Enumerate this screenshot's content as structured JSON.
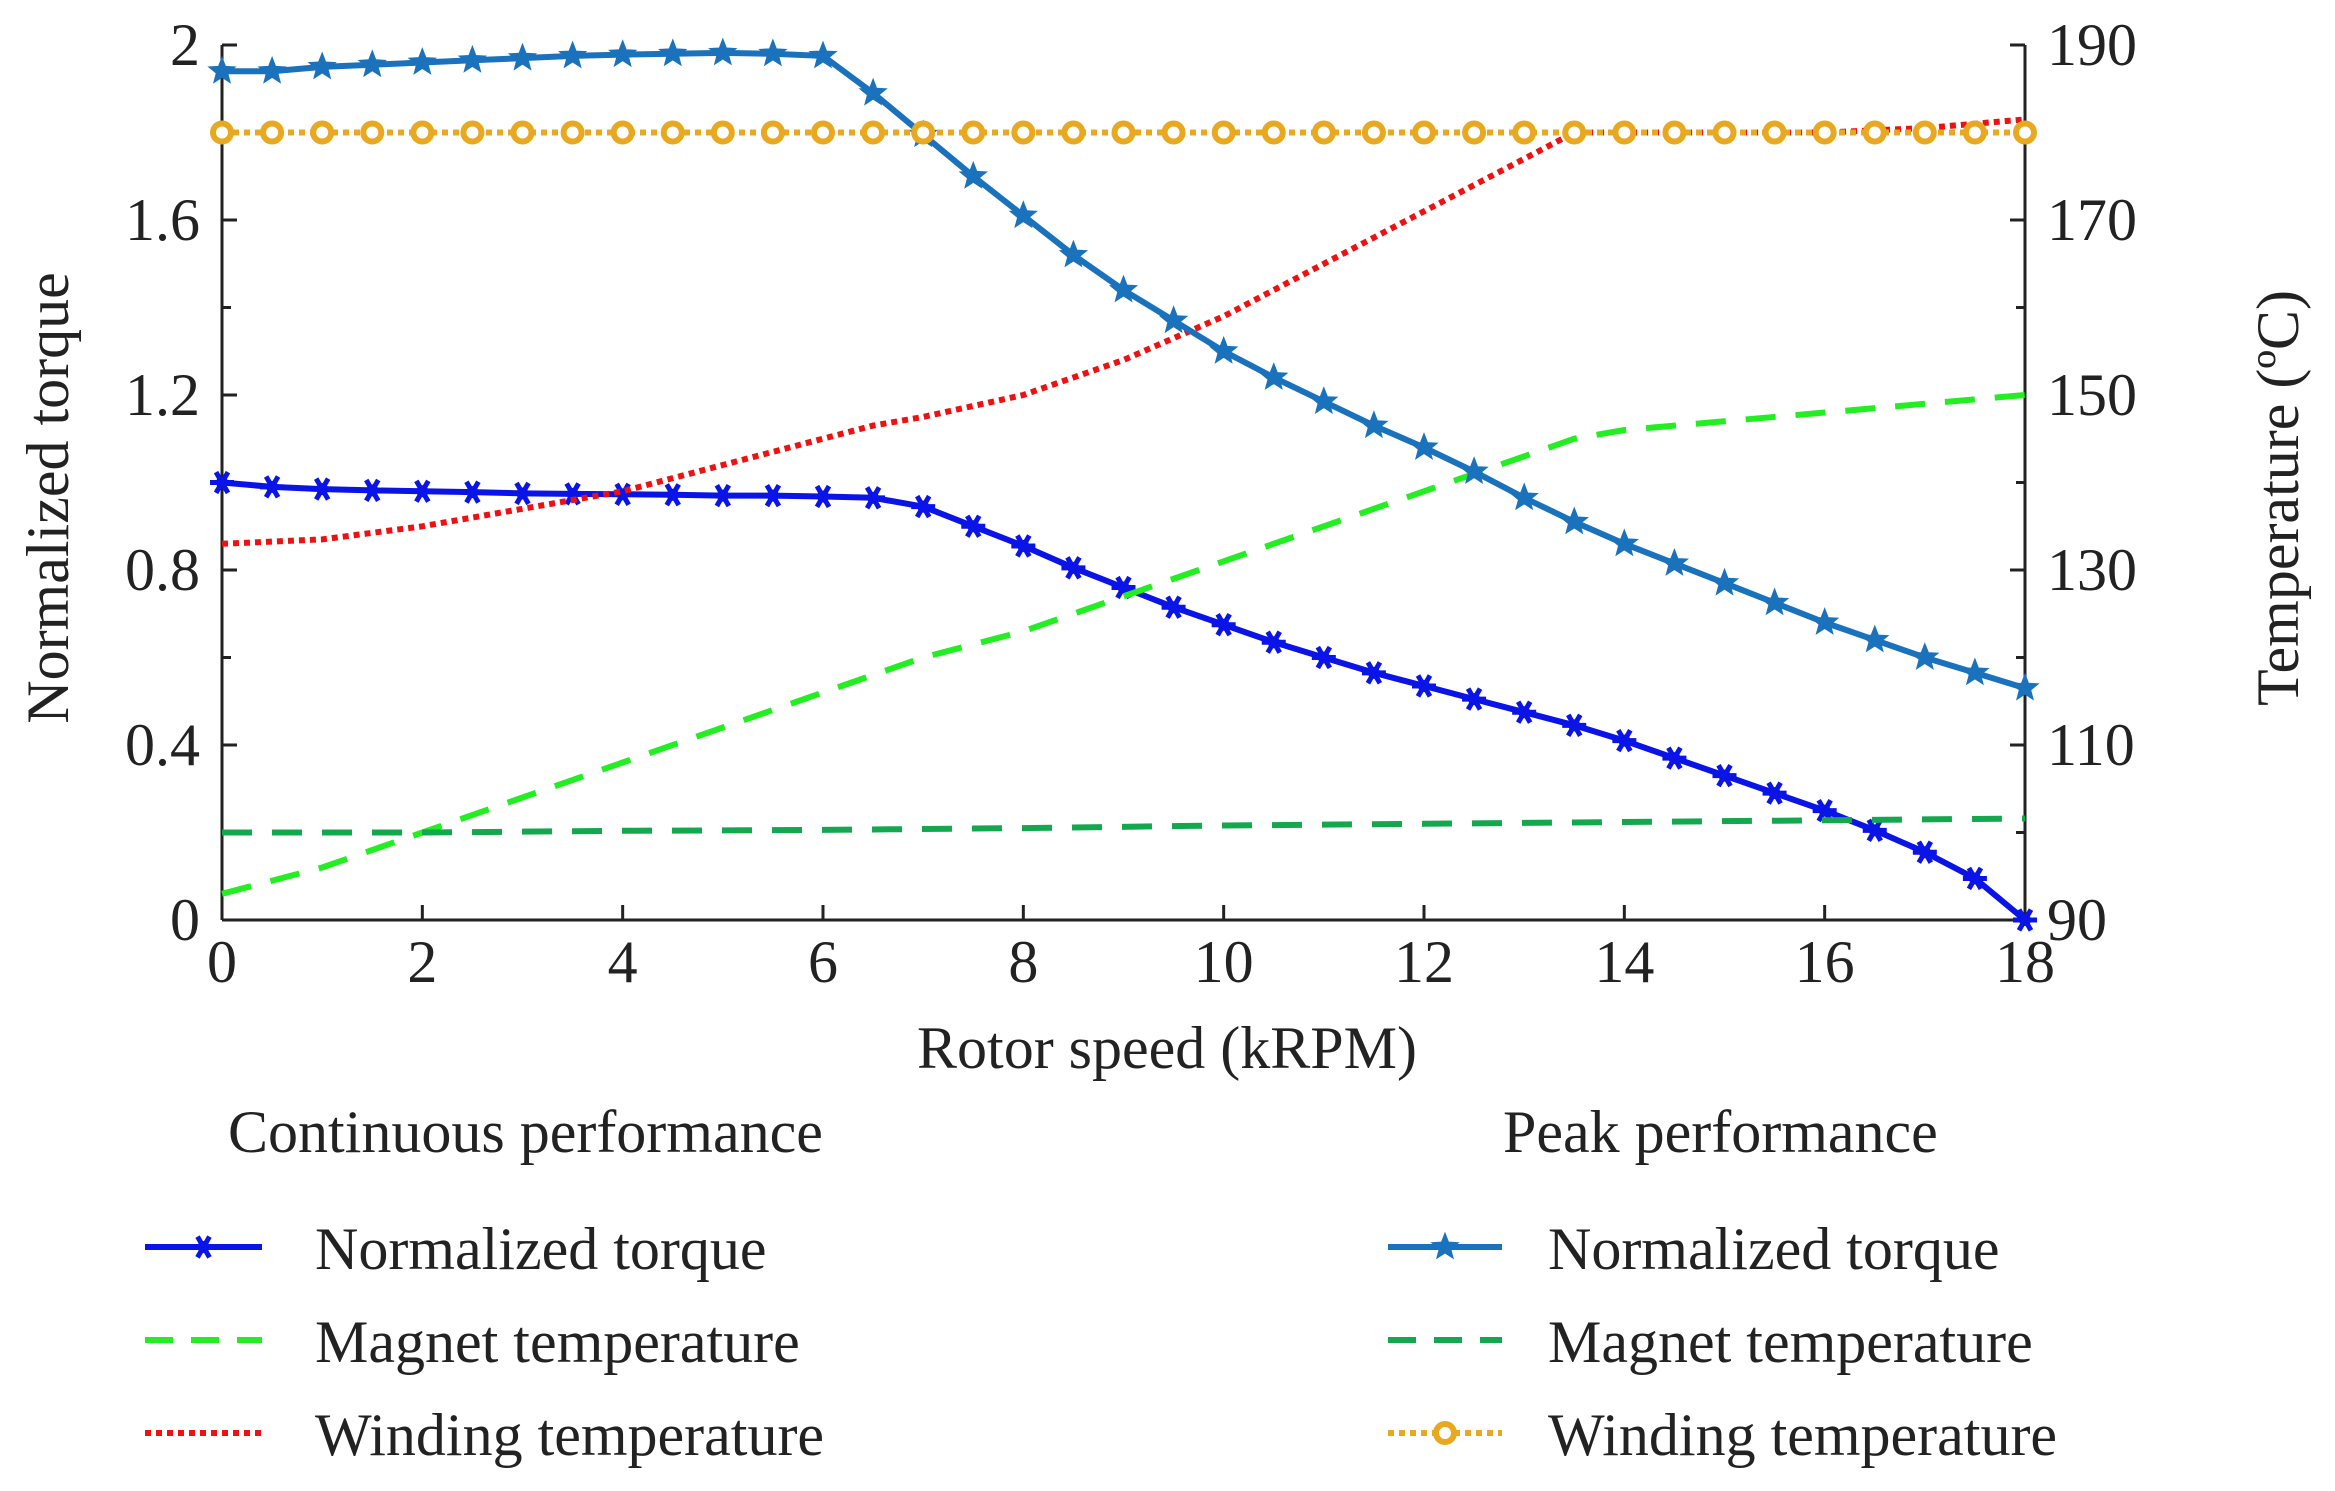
{
  "chart_data": {
    "type": "line",
    "xlabel": "Rotor speed (kRPM)",
    "ylabel": "Normalized torque",
    "ylabel_right": "Temperature (ºC)",
    "xlim": [
      0,
      18
    ],
    "ylim": [
      0,
      2
    ],
    "ylim_right": [
      90,
      190
    ],
    "x_ticks": [
      "0",
      "2",
      "4",
      "6",
      "8",
      "10",
      "12",
      "14",
      "16",
      "18"
    ],
    "y_ticks": [
      "0",
      "0.4",
      "0.8",
      "1.2",
      "1.6",
      "2"
    ],
    "y_ticks_right": [
      "90",
      "110",
      "130",
      "150",
      "170",
      "190"
    ],
    "legend": {
      "continuous_title": "Continuous performance",
      "peak_title": "Peak performance"
    },
    "series": [
      {
        "name": "Normalized torque",
        "group": "Continuous performance",
        "axis": "left",
        "color": "#0a14e6",
        "style": "solid",
        "marker": "asterisk",
        "x": [
          0,
          0.5,
          1,
          1.5,
          2,
          2.5,
          3,
          3.5,
          4,
          4.5,
          5,
          5.5,
          6,
          6.5,
          7,
          7.5,
          8,
          8.5,
          9,
          9.5,
          10,
          10.5,
          11,
          11.5,
          12,
          12.5,
          13,
          13.5,
          14,
          14.5,
          15,
          15.5,
          16,
          16.5,
          17,
          17.5,
          18
        ],
        "y": [
          1.0,
          0.99,
          0.985,
          0.982,
          0.98,
          0.978,
          0.975,
          0.974,
          0.973,
          0.972,
          0.97,
          0.97,
          0.968,
          0.965,
          0.945,
          0.9,
          0.855,
          0.805,
          0.76,
          0.715,
          0.675,
          0.635,
          0.6,
          0.565,
          0.535,
          0.505,
          0.475,
          0.445,
          0.41,
          0.37,
          0.33,
          0.29,
          0.25,
          0.205,
          0.155,
          0.095,
          0.0
        ]
      },
      {
        "name": "Magnet temperature",
        "group": "Continuous performance",
        "axis": "right",
        "color": "#22ee22",
        "style": "dashed",
        "marker": "none",
        "x": [
          0,
          1,
          2,
          3,
          4,
          5,
          6,
          7,
          8,
          9,
          10,
          11,
          12,
          13,
          13.5,
          14,
          15,
          16,
          17,
          18
        ],
        "y": [
          93,
          96,
          100,
          104,
          108,
          112,
          116,
          120,
          123,
          127,
          131,
          135,
          139,
          143,
          145,
          146,
          147,
          148,
          149,
          150
        ]
      },
      {
        "name": "Winding temperature",
        "group": "Continuous performance",
        "axis": "right",
        "color": "#ee1111",
        "style": "dotted",
        "marker": "none",
        "x": [
          0,
          1,
          2,
          3,
          4,
          5,
          6,
          6.5,
          7,
          8,
          9,
          10,
          11,
          12,
          13,
          13.5,
          14,
          15,
          16,
          17,
          18
        ],
        "y": [
          133,
          133.5,
          135,
          137,
          139,
          142,
          145,
          146.5,
          147.5,
          150,
          154,
          159,
          165,
          171,
          177,
          180,
          180,
          180,
          180,
          180.5,
          181.5
        ]
      },
      {
        "name": "Normalized torque",
        "group": "Peak performance",
        "axis": "left",
        "color": "#1a72bd",
        "style": "solid",
        "marker": "star",
        "x": [
          0,
          0.5,
          1,
          1.5,
          2,
          2.5,
          3,
          3.5,
          4,
          4.5,
          5,
          5.5,
          6,
          6.5,
          7,
          7.5,
          8,
          8.5,
          9,
          9.5,
          10,
          10.5,
          11,
          11.5,
          12,
          12.5,
          13,
          13.5,
          14,
          14.5,
          15,
          15.5,
          16,
          16.5,
          17,
          17.5,
          18
        ],
        "y": [
          1.94,
          1.94,
          1.95,
          1.955,
          1.96,
          1.965,
          1.97,
          1.975,
          1.978,
          1.98,
          1.982,
          1.98,
          1.975,
          1.89,
          1.795,
          1.7,
          1.61,
          1.52,
          1.44,
          1.37,
          1.3,
          1.24,
          1.185,
          1.13,
          1.08,
          1.025,
          0.965,
          0.91,
          0.86,
          0.815,
          0.77,
          0.725,
          0.68,
          0.64,
          0.6,
          0.565,
          0.53
        ]
      },
      {
        "name": "Magnet temperature",
        "group": "Peak performance",
        "axis": "right",
        "color": "#14a84e",
        "style": "dashed",
        "marker": "none",
        "x": [
          0,
          2,
          4,
          6,
          8,
          10,
          12,
          14,
          16,
          18
        ],
        "y": [
          100,
          100,
          100.2,
          100.3,
          100.5,
          100.8,
          101,
          101.2,
          101.4,
          101.6
        ]
      },
      {
        "name": "Winding temperature",
        "group": "Peak performance",
        "axis": "right",
        "color": "#e8a820",
        "style": "dotted",
        "marker": "circle",
        "x": [
          0,
          0.5,
          1,
          1.5,
          2,
          2.5,
          3,
          3.5,
          4,
          4.5,
          5,
          5.5,
          6,
          6.5,
          7,
          7.5,
          8,
          8.5,
          9,
          9.5,
          10,
          10.5,
          11,
          11.5,
          12,
          12.5,
          13,
          13.5,
          14,
          14.5,
          15,
          15.5,
          16,
          16.5,
          17,
          17.5,
          18
        ],
        "y": [
          180,
          180,
          180,
          180,
          180,
          180,
          180,
          180,
          180,
          180,
          180,
          180,
          180,
          180,
          180,
          180,
          180,
          180,
          180,
          180,
          180,
          180,
          180,
          180,
          180,
          180,
          180,
          180,
          180,
          180,
          180,
          180,
          180,
          180,
          180,
          180,
          180
        ]
      }
    ]
  }
}
